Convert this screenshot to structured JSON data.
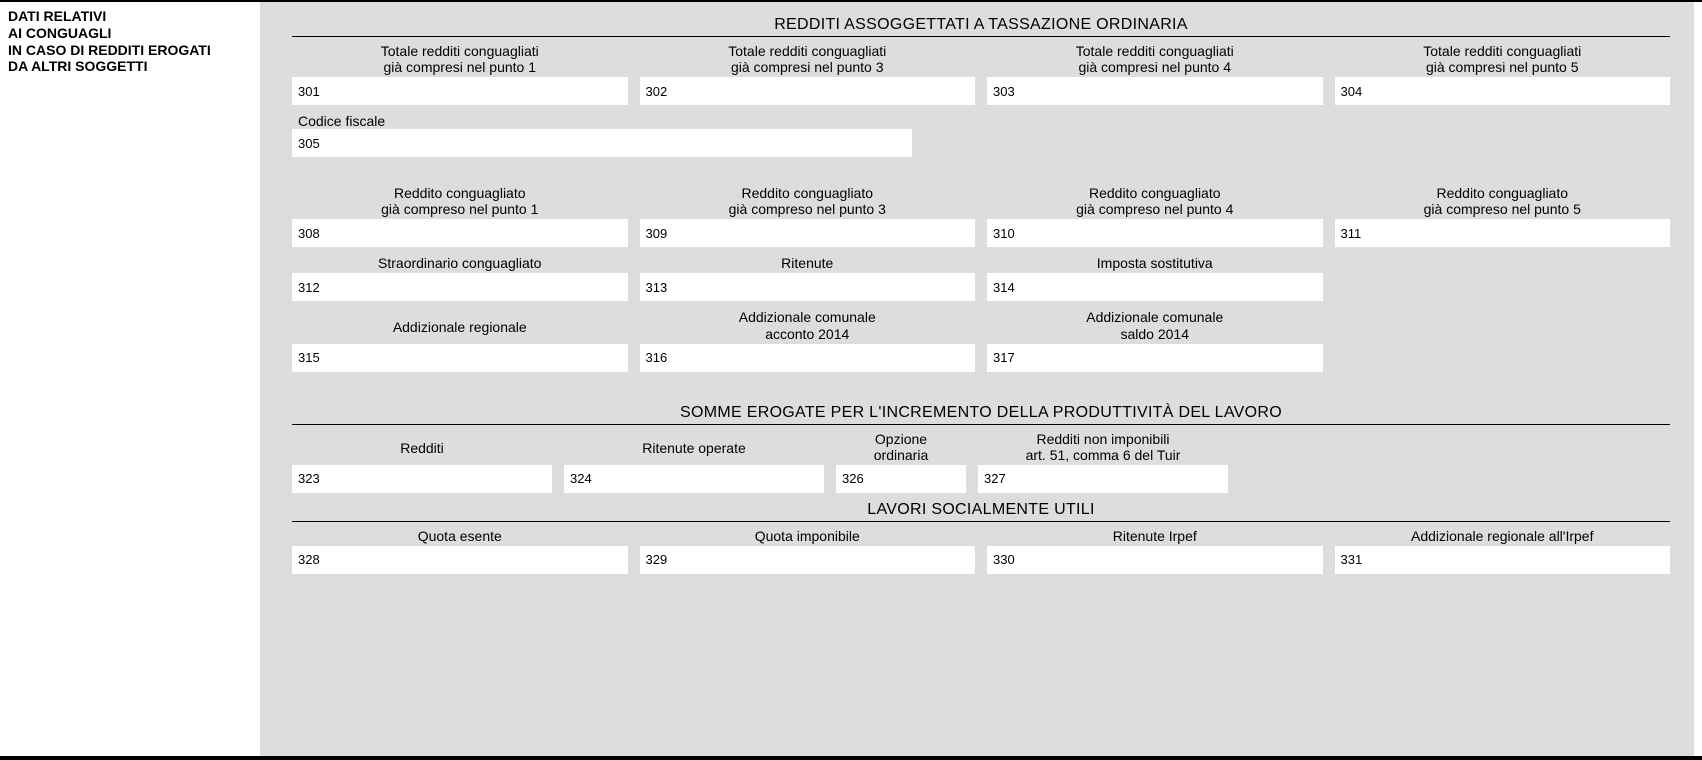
{
  "sidebar": {
    "line1": "DATI RELATIVI",
    "line2": "AI CONGUAGLI",
    "line3": "IN CASO DI REDDITI EROGATI",
    "line4": "DA ALTRI SOGGETTI"
  },
  "section1": {
    "heading": "REDDITI ASSOGGETTATI A TASSAZIONE ORDINARIA",
    "row1": {
      "f301": {
        "num": "301",
        "label_l1": "Totale redditi conguagliati",
        "label_l2": "già compresi nel punto 1"
      },
      "f302": {
        "num": "302",
        "label_l1": "Totale redditi conguagliati",
        "label_l2": "già compresi nel punto 3"
      },
      "f303": {
        "num": "303",
        "label_l1": "Totale redditi conguagliati",
        "label_l2": "già compresi nel punto 4"
      },
      "f304": {
        "num": "304",
        "label_l1": "Totale redditi conguagliati",
        "label_l2": "già compresi nel punto 5"
      }
    },
    "cf": {
      "label": "Codice fiscale",
      "num": "305"
    },
    "row3": {
      "f308": {
        "num": "308",
        "label_l1": "Reddito conguagliato",
        "label_l2": "già compreso nel punto 1"
      },
      "f309": {
        "num": "309",
        "label_l1": "Reddito conguagliato",
        "label_l2": "già compreso nel punto 3"
      },
      "f310": {
        "num": "310",
        "label_l1": "Reddito conguagliato",
        "label_l2": "già compreso nel punto 4"
      },
      "f311": {
        "num": "311",
        "label_l1": "Reddito conguagliato",
        "label_l2": "già compreso nel punto 5"
      }
    },
    "row4": {
      "f312": {
        "num": "312",
        "label": "Straordinario conguagliato"
      },
      "f313": {
        "num": "313",
        "label": "Ritenute"
      },
      "f314": {
        "num": "314",
        "label": "Imposta sostitutiva"
      }
    },
    "row5": {
      "f315": {
        "num": "315",
        "label": "Addizionale regionale"
      },
      "f316": {
        "num": "316",
        "label_l1": "Addizionale comunale",
        "label_l2": "acconto 2014"
      },
      "f317": {
        "num": "317",
        "label_l1": "Addizionale comunale",
        "label_l2": "saldo 2014"
      }
    }
  },
  "section2": {
    "heading": "SOMME EROGATE PER L'INCREMENTO DELLA PRODUTTIVITÀ DEL LAVORO",
    "row1": {
      "f323": {
        "num": "323",
        "label": "Redditi"
      },
      "f324": {
        "num": "324",
        "label": "Ritenute operate"
      },
      "f326": {
        "num": "326",
        "label_l1": "Opzione",
        "label_l2": "ordinaria"
      },
      "f327": {
        "num": "327",
        "label_l1": "Redditi non imponibili",
        "label_l2": "art. 51, comma 6 del Tuir"
      }
    }
  },
  "section3": {
    "heading": "LAVORI SOCIALMENTE UTILI",
    "row1": {
      "f328": {
        "num": "328",
        "label": "Quota esente"
      },
      "f329": {
        "num": "329",
        "label": "Quota imponibile"
      },
      "f330": {
        "num": "330",
        "label": "Ritenute Irpef"
      },
      "f331": {
        "num": "331",
        "label": "Addizionale regionale all'Irpef"
      }
    }
  }
}
